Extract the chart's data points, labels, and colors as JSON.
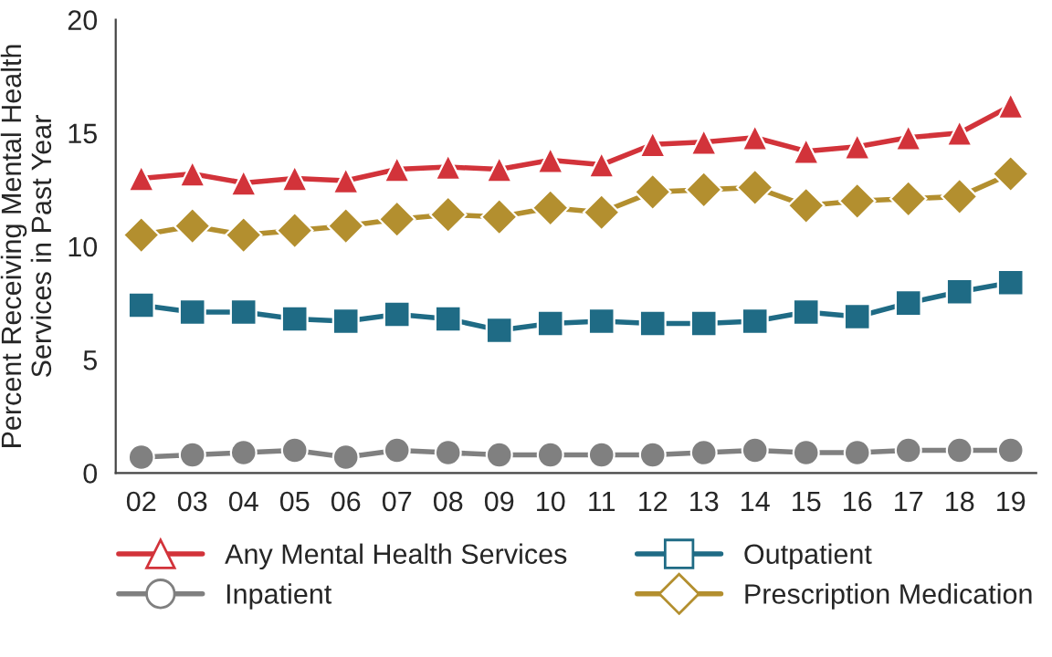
{
  "chart_data": {
    "type": "line",
    "ylabel": "Percent Receiving Mental Health\nServices in Past Year",
    "categories": [
      "02",
      "03",
      "04",
      "05",
      "06",
      "07",
      "08",
      "09",
      "10",
      "11",
      "12",
      "13",
      "14",
      "15",
      "16",
      "17",
      "18",
      "19"
    ],
    "ylim": [
      0,
      20
    ],
    "yticks": [
      0,
      5,
      10,
      15,
      20
    ],
    "grid": false,
    "legend": "bottom",
    "series": [
      {
        "name": "Any Mental Health Services",
        "color": "#d2333a",
        "marker": "triangle",
        "values": [
          13.0,
          13.2,
          12.8,
          13.0,
          12.9,
          13.4,
          13.5,
          13.4,
          13.8,
          13.6,
          14.5,
          14.6,
          14.8,
          14.2,
          14.4,
          14.8,
          15.0,
          16.2
        ]
      },
      {
        "name": "Outpatient",
        "color": "#1f6b85",
        "marker": "square",
        "values": [
          7.4,
          7.1,
          7.1,
          6.8,
          6.7,
          7.0,
          6.8,
          6.3,
          6.6,
          6.7,
          6.6,
          6.6,
          6.7,
          7.1,
          6.9,
          7.5,
          8.0,
          8.4
        ]
      },
      {
        "name": "Inpatient",
        "color": "#808080",
        "marker": "circle",
        "values": [
          0.7,
          0.8,
          0.9,
          1.0,
          0.7,
          1.0,
          0.9,
          0.8,
          0.8,
          0.8,
          0.8,
          0.9,
          1.0,
          0.9,
          0.9,
          1.0,
          1.0,
          1.0
        ]
      },
      {
        "name": "Prescription Medication",
        "color": "#b38f2f",
        "marker": "diamond",
        "values": [
          10.5,
          10.9,
          10.5,
          10.7,
          10.9,
          11.2,
          11.4,
          11.3,
          11.7,
          11.5,
          12.4,
          12.5,
          12.6,
          11.8,
          12.0,
          12.1,
          12.2,
          13.2
        ]
      }
    ]
  }
}
